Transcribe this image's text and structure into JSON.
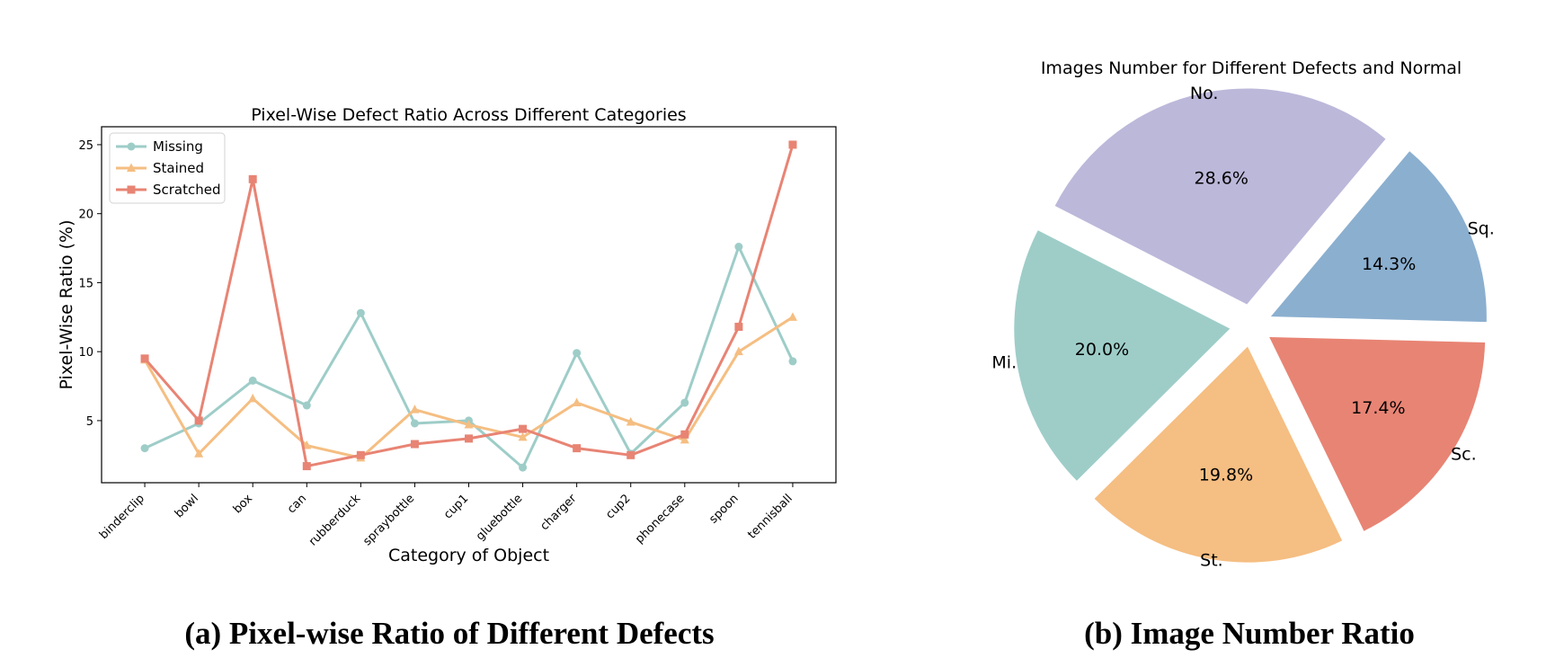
{
  "chart_data": [
    {
      "type": "line",
      "title": "Pixel-Wise Defect Ratio Across Different Categories",
      "xlabel": "Category of Object",
      "ylabel": "Pixel-Wise Ratio (%)",
      "categories": [
        "binderclip",
        "bowl",
        "box",
        "can",
        "rubberduck",
        "spraybottle",
        "cup1",
        "gluebottle",
        "charger",
        "cup2",
        "phonecase",
        "spoon",
        "tennisball"
      ],
      "ylim": [
        0.5,
        26.3
      ],
      "yticks": [
        5,
        10,
        15,
        20,
        25
      ],
      "legend": "top-left",
      "series": [
        {
          "name": "Missing",
          "color": "#9ecdc8",
          "marker": "circle",
          "values": [
            3.0,
            4.8,
            7.9,
            6.1,
            12.8,
            4.8,
            5.0,
            1.6,
            9.9,
            2.6,
            6.3,
            17.6,
            9.3
          ]
        },
        {
          "name": "Stained",
          "color": "#f5be82",
          "marker": "triangle",
          "values": [
            9.4,
            2.6,
            6.6,
            3.2,
            2.3,
            5.8,
            4.7,
            3.8,
            6.3,
            4.9,
            3.6,
            10.0,
            12.5
          ]
        },
        {
          "name": "Scratched",
          "color": "#e88474",
          "marker": "square",
          "values": [
            9.5,
            5.0,
            22.5,
            1.7,
            2.5,
            3.3,
            3.7,
            4.4,
            3.0,
            2.5,
            4.0,
            11.8,
            25.0
          ]
        }
      ]
    },
    {
      "type": "pie",
      "title": "Images Number for Different Defects and Normal",
      "slices": [
        {
          "label": "No.",
          "value": 28.6,
          "text": "28.6%",
          "color": "#bcb8da"
        },
        {
          "label": "Mi.",
          "value": 20.0,
          "text": "20.0%",
          "color": "#9ecdc8"
        },
        {
          "label": "St.",
          "value": 19.8,
          "text": "19.8%",
          "color": "#f5be82"
        },
        {
          "label": "Sc.",
          "value": 17.4,
          "text": "17.4%",
          "color": "#e88474"
        },
        {
          "label": "Sq.",
          "value": 14.3,
          "text": "14.3%",
          "color": "#8bafcf"
        }
      ]
    }
  ],
  "captions": {
    "left": "(a) Pixel-wise Ratio of Different Defects",
    "right": "(b) Image Number Ratio"
  }
}
